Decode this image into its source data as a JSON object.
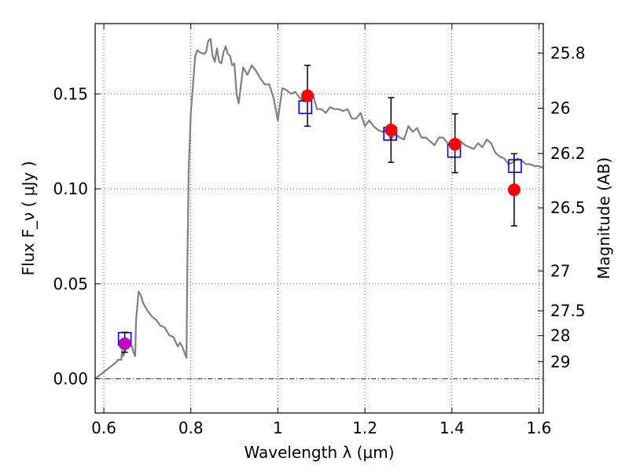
{
  "chart_data": {
    "type": "scatter",
    "xlabel": "Wavelength  λ (μm)",
    "ylabel": "Flux  F_ν  ( μJy )",
    "ylabel_right": "Magnitude (AB)",
    "xlim": [
      0.58,
      1.61
    ],
    "ylim": [
      -0.018,
      0.187
    ],
    "x_ticks": [
      0.6,
      0.8,
      1.0,
      1.2,
      1.4,
      1.6
    ],
    "x_tick_labels": [
      "0.6",
      "0.8",
      "1",
      "1.2",
      "1.4",
      "1.6"
    ],
    "y_ticks": [
      0.0,
      0.05,
      0.1,
      0.15
    ],
    "y_tick_labels": [
      "0.00",
      "0.05",
      "0.10",
      "0.15"
    ],
    "mag_ticks": [
      {
        "label": "25.8",
        "flux": 0.1714
      },
      {
        "label": "26",
        "flux": 0.1425
      },
      {
        "label": "26.2",
        "flux": 0.1186
      },
      {
        "label": "26.5",
        "flux": 0.09
      },
      {
        "label": "27",
        "flux": 0.0568
      },
      {
        "label": "27.5",
        "flux": 0.0358
      },
      {
        "label": "28",
        "flux": 0.0227
      },
      {
        "label": "29",
        "flux": 0.009
      }
    ],
    "grid": "dotted",
    "zero_line": true,
    "series": [
      {
        "kind": "line",
        "color": "#808080",
        "x": [
          0.58,
          0.63,
          0.632,
          0.64,
          0.642,
          0.645,
          0.65,
          0.655,
          0.66,
          0.665,
          0.668,
          0.672,
          0.674,
          0.676,
          0.68,
          0.685,
          0.69,
          0.7,
          0.71,
          0.72,
          0.73,
          0.74,
          0.75,
          0.76,
          0.77,
          0.775,
          0.78,
          0.79,
          0.792,
          0.795,
          0.8,
          0.81,
          0.815,
          0.82,
          0.83,
          0.835,
          0.84,
          0.845,
          0.85,
          0.855,
          0.86,
          0.865,
          0.87,
          0.875,
          0.88,
          0.885,
          0.89,
          0.895,
          0.9,
          0.905,
          0.91,
          0.92,
          0.93,
          0.94,
          0.95,
          0.96,
          0.97,
          0.98,
          0.99,
          1.0,
          1.01,
          1.02,
          1.03,
          1.04,
          1.05,
          1.06,
          1.07,
          1.08,
          1.09,
          1.1,
          1.11,
          1.12,
          1.13,
          1.14,
          1.15,
          1.16,
          1.17,
          1.18,
          1.19,
          1.2,
          1.21,
          1.22,
          1.23,
          1.24,
          1.25,
          1.26,
          1.27,
          1.28,
          1.29,
          1.3,
          1.31,
          1.32,
          1.33,
          1.34,
          1.35,
          1.36,
          1.37,
          1.38,
          1.39,
          1.4,
          1.41,
          1.42,
          1.43,
          1.44,
          1.45,
          1.46,
          1.47,
          1.48,
          1.49,
          1.5,
          1.51,
          1.52,
          1.53,
          1.54,
          1.55,
          1.56,
          1.57,
          1.58,
          1.59,
          1.6,
          1.61
        ],
        "y": [
          0.0,
          0.009,
          0.01,
          0.01,
          0.015,
          0.012,
          0.016,
          0.02,
          0.018,
          0.017,
          0.014,
          0.012,
          0.03,
          0.036,
          0.046,
          0.044,
          0.04,
          0.036,
          0.033,
          0.031,
          0.028,
          0.027,
          0.023,
          0.022,
          0.017,
          0.019,
          0.017,
          0.011,
          0.06,
          0.11,
          0.14,
          0.17,
          0.173,
          0.172,
          0.171,
          0.172,
          0.178,
          0.179,
          0.17,
          0.167,
          0.174,
          0.167,
          0.166,
          0.172,
          0.175,
          0.171,
          0.17,
          0.165,
          0.166,
          0.15,
          0.145,
          0.164,
          0.16,
          0.165,
          0.162,
          0.158,
          0.155,
          0.155,
          0.148,
          0.136,
          0.153,
          0.152,
          0.15,
          0.151,
          0.148,
          0.146,
          0.146,
          0.15,
          0.142,
          0.142,
          0.14,
          0.143,
          0.142,
          0.142,
          0.141,
          0.142,
          0.137,
          0.137,
          0.14,
          0.133,
          0.136,
          0.133,
          0.131,
          0.13,
          0.131,
          0.126,
          0.129,
          0.127,
          0.126,
          0.133,
          0.13,
          0.132,
          0.127,
          0.127,
          0.125,
          0.123,
          0.127,
          0.127,
          0.124,
          0.124,
          0.126,
          0.125,
          0.123,
          0.122,
          0.121,
          0.124,
          0.122,
          0.126,
          0.124,
          0.119,
          0.117,
          0.116,
          0.113,
          0.114,
          0.116,
          0.115,
          0.113,
          0.113,
          0.112,
          0.112,
          0.111
        ]
      },
      {
        "kind": "open-square",
        "color": "#0000ff",
        "x": [
          0.648,
          1.063,
          1.258,
          1.405,
          1.545
        ],
        "y": [
          0.021,
          0.143,
          0.129,
          0.12,
          0.112
        ]
      },
      {
        "kind": "filled-circle-errorbar",
        "x": [
          0.648,
          1.068,
          1.26,
          1.407,
          1.543
        ],
        "y": [
          0.0185,
          0.149,
          0.131,
          0.1235,
          0.0995
        ],
        "yerr_low": [
          0.0045,
          0.016,
          0.017,
          0.015,
          0.019
        ],
        "yerr_high": [
          0.006,
          0.016,
          0.017,
          0.016,
          0.019
        ],
        "colors": [
          "#c000c0",
          "#ff0000",
          "#ff0000",
          "#ff0000",
          "#ff0000"
        ]
      }
    ]
  }
}
